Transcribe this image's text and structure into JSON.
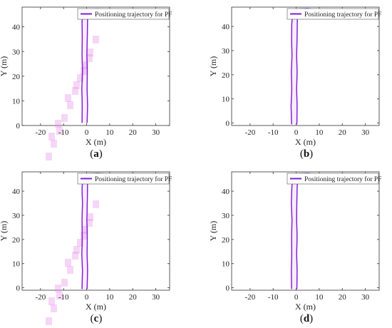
{
  "figure": {
    "accent_color": "#7a1fd6",
    "track_color": "#cc33cc",
    "particle_color": "#e68ae6"
  },
  "chart_data": [
    {
      "type": "line",
      "panel_label": "a",
      "xlabel": "X (m)",
      "ylabel": "Y (m)",
      "xlim": [
        -28,
        36
      ],
      "ylim": [
        0,
        48
      ],
      "xticks": [
        -20,
        -10,
        0,
        10,
        20,
        30
      ],
      "yticks": [
        0,
        10,
        20,
        30,
        40
      ],
      "grid": false,
      "legend_position": "top-right",
      "series": [
        {
          "name": "Positioning trajectory for PF",
          "x": [
            -2.0,
            -1.9,
            -2.1,
            -1.8,
            -2.0,
            -1.9,
            -2.0,
            -1.6,
            1.0,
            5.0,
            9.0,
            10.2,
            10.0,
            6.0,
            2.0,
            0.4,
            0.3,
            0.1,
            0.3,
            0.2,
            0.4,
            0.2
          ],
          "y": [
            1,
            8,
            15,
            22,
            29,
            36,
            42,
            46.5,
            47.2,
            47.3,
            47.0,
            46.5,
            45.8,
            45.9,
            45.6,
            44,
            36,
            29,
            22,
            15,
            8,
            1
          ]
        }
      ],
      "scattered_particles": true
    },
    {
      "type": "line",
      "panel_label": "b",
      "xlabel": "X (m)",
      "ylabel": "Y (m)",
      "xlim": [
        -28,
        36
      ],
      "ylim": [
        -1,
        48
      ],
      "xticks": [
        -20,
        -10,
        0,
        10,
        20,
        30
      ],
      "yticks": [
        0,
        10,
        20,
        30,
        40
      ],
      "grid": false,
      "legend_position": "top-right",
      "series": [
        {
          "name": "Positioning trajectory for PF",
          "x": [
            -2.0,
            -2.2,
            -1.9,
            -2.1,
            -1.8,
            -2.0,
            -1.9,
            -1.5,
            1.0,
            5.0,
            9.0,
            10.3,
            10.0,
            6.0,
            2.0,
            0.5,
            0.4,
            0.2,
            0.4,
            0.2,
            0.4,
            0.3
          ],
          "y": [
            -0.5,
            7,
            14,
            21,
            28,
            35,
            41,
            46.5,
            47.3,
            47.4,
            47.0,
            46.4,
            45.8,
            45.9,
            45.6,
            44,
            36,
            28,
            21,
            14,
            7,
            -0.5
          ]
        }
      ],
      "scattered_particles": false
    },
    {
      "type": "line",
      "panel_label": "c",
      "xlabel": "X (m)",
      "ylabel": "Y (m)",
      "xlim": [
        -28,
        36
      ],
      "ylim": [
        -1,
        48
      ],
      "xticks": [
        -20,
        -10,
        0,
        10,
        20,
        30
      ],
      "yticks": [
        0,
        10,
        20,
        30,
        40
      ],
      "grid": false,
      "legend_position": "top-right",
      "series": [
        {
          "name": "Positioning trajectory for PF",
          "x": [
            -2.0,
            -1.8,
            -2.1,
            -1.9,
            -2.0,
            -1.8,
            -2.0,
            -1.6,
            1.0,
            5.0,
            9.0,
            10.2,
            10.0,
            6.0,
            2.0,
            0.4,
            0.3,
            0.1,
            0.3,
            0.2,
            0.4,
            0.2
          ],
          "y": [
            -0.5,
            7,
            14,
            21,
            28,
            35,
            41,
            46.6,
            47.3,
            47.4,
            47.1,
            46.5,
            45.8,
            45.9,
            45.6,
            44,
            36,
            28,
            21,
            14,
            7,
            -0.5
          ]
        }
      ],
      "scattered_particles": true
    },
    {
      "type": "line",
      "panel_label": "d",
      "xlabel": "X (m)",
      "ylabel": "Y (m)",
      "xlim": [
        -28,
        36
      ],
      "ylim": [
        -1,
        48
      ],
      "xticks": [
        -20,
        -10,
        0,
        10,
        20,
        30
      ],
      "yticks": [
        0,
        10,
        20,
        30,
        40
      ],
      "grid": false,
      "legend_position": "top-right",
      "series": [
        {
          "name": "Positioning trajectory for PF",
          "x": [
            -2.0,
            -2.1,
            -1.9,
            -2.0,
            -1.8,
            -2.1,
            -1.9,
            -1.5,
            1.0,
            5.0,
            9.0,
            10.3,
            10.0,
            6.0,
            2.0,
            0.5,
            0.3,
            0.2,
            0.4,
            0.2,
            0.4,
            0.3
          ],
          "y": [
            -0.5,
            7,
            14,
            21,
            28,
            35,
            41,
            46.5,
            47.3,
            47.4,
            47.0,
            46.4,
            45.8,
            45.9,
            45.6,
            44,
            36,
            28,
            21,
            14,
            7,
            -0.5
          ]
        }
      ],
      "scattered_particles": false
    }
  ]
}
